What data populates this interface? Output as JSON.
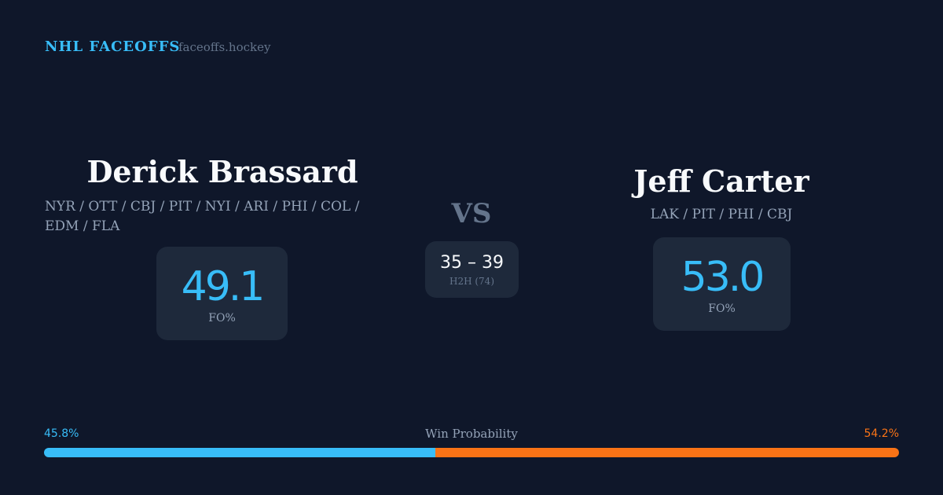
{
  "header": {
    "brand": "NHL FACEOFFS",
    "site": "faceoffs.hockey"
  },
  "player1": {
    "name": "Derick Brassard",
    "teams": "NYR / OTT / CBJ / PIT / NYI / ARI / PHI / COL / EDM / FLA",
    "fo_pct": "49.1",
    "fo_label": "FO%"
  },
  "player2": {
    "name": "Jeff Carter",
    "teams": "LAK / PIT / PHI / CBJ",
    "fo_pct": "53.0",
    "fo_label": "FO%"
  },
  "vs": "VS",
  "h2h": {
    "score": "35 – 39",
    "label": "H2H (74)"
  },
  "win_probability": {
    "label": "Win Probability",
    "p1_text": "45.8%",
    "p2_text": "54.2%",
    "p1": 45.8,
    "p2": 54.2,
    "p1_color": "#38bdf8",
    "p2_color": "#f97316"
  }
}
